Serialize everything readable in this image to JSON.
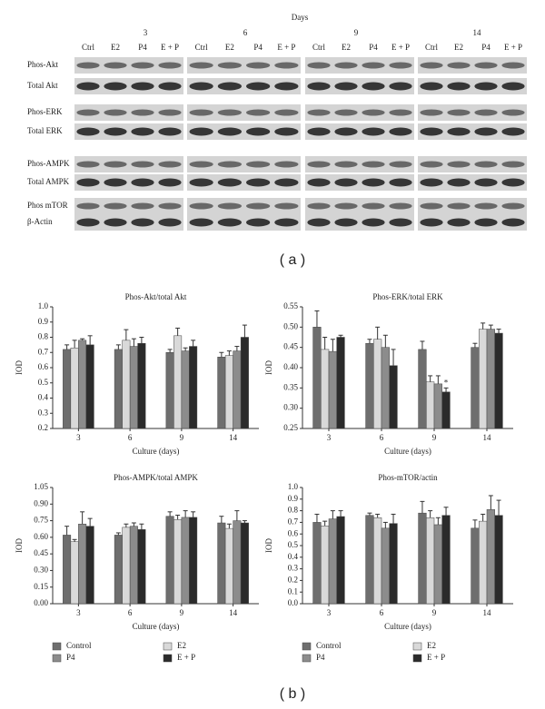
{
  "blot": {
    "header": "Days",
    "days": [
      "3",
      "6",
      "9",
      "14"
    ],
    "lanes": [
      "Ctrl",
      "E2",
      "P4",
      "E + P"
    ],
    "rows": [
      "Phos-Akt",
      "Total Akt",
      "Phos-ERK",
      "Total ERK",
      "Phos-AMPK",
      "Total AMPK",
      "Phos mTOR",
      "β-Actin"
    ]
  },
  "labels": {
    "a": "( a )",
    "b": "( b )"
  },
  "chart_data": [
    {
      "type": "bar",
      "title": "Phos-Akt/total Akt",
      "x_label": "Culture (days)",
      "y_label": "IOD",
      "categories": [
        "3",
        "6",
        "9",
        "14"
      ],
      "ylim": [
        0.2,
        1.0
      ],
      "yticks": [
        0.2,
        0.3,
        0.4,
        0.5,
        0.6,
        0.7,
        0.8,
        0.9,
        {
          "value": 1.0,
          "label": "1.0"
        }
      ],
      "series": [
        {
          "color": "#6e6e6e",
          "values": [
            0.72,
            0.72,
            0.7,
            0.67
          ],
          "errors": [
            0.03,
            0.03,
            0.02,
            0.03
          ]
        },
        {
          "color": "#d9d9d9",
          "values": [
            0.73,
            0.78,
            0.81,
            0.68
          ],
          "errors": [
            0.05,
            0.07,
            0.05,
            0.03
          ]
        },
        {
          "color": "#8c8c8c",
          "values": [
            0.78,
            0.74,
            0.71,
            0.71
          ],
          "errors": [
            0.01,
            0.05,
            0.02,
            0.03
          ]
        },
        {
          "color": "#2b2b2b",
          "values": [
            0.75,
            0.76,
            0.74,
            0.8
          ],
          "errors": [
            0.06,
            0.04,
            0.04,
            0.08
          ]
        }
      ]
    },
    {
      "type": "bar",
      "title": "Phos-ERK/total ERK",
      "x_label": "Culture (days)",
      "y_label": "IOD",
      "categories": [
        "3",
        "6",
        "9",
        "14"
      ],
      "ylim": [
        0.25,
        0.55
      ],
      "yticks": [
        0.25,
        {
          "value": 0.3,
          "label": "0.30"
        },
        0.35,
        {
          "value": 0.4,
          "label": "0.40"
        },
        0.45,
        {
          "value": 0.5,
          "label": "0.50"
        },
        0.55
      ],
      "annotation": "*",
      "series": [
        {
          "color": "#6e6e6e",
          "values": [
            0.5,
            0.46,
            0.445,
            0.45
          ],
          "errors": [
            0.04,
            0.01,
            0.02,
            0.01
          ]
        },
        {
          "color": "#d9d9d9",
          "values": [
            0.445,
            0.47,
            0.365,
            0.495
          ],
          "errors": [
            0.03,
            0.03,
            0.015,
            0.015
          ]
        },
        {
          "color": "#8c8c8c",
          "values": [
            0.44,
            0.45,
            0.36,
            0.495
          ],
          "errors": [
            0.03,
            0.03,
            0.02,
            0.01
          ]
        },
        {
          "color": "#2b2b2b",
          "values": [
            0.475,
            0.405,
            0.34,
            0.485
          ],
          "errors": [
            0.005,
            0.04,
            0.01,
            0.01
          ]
        }
      ]
    },
    {
      "type": "bar",
      "title": "Phos-AMPK/total AMPK",
      "x_label": "Culture (days)",
      "y_label": "IOD",
      "categories": [
        "3",
        "6",
        "9",
        "14"
      ],
      "ylim": [
        0,
        1.05
      ],
      "yticks": [
        {
          "value": 0,
          "label": "0.00"
        },
        0.15,
        {
          "value": 0.3,
          "label": "0.30"
        },
        0.45,
        {
          "value": 0.6,
          "label": "0.60"
        },
        0.75,
        {
          "value": 0.9,
          "label": "0.90"
        },
        1.05
      ],
      "legend": true,
      "series": [
        {
          "name": "Control",
          "color": "#6e6e6e",
          "values": [
            0.62,
            0.62,
            0.79,
            0.73
          ],
          "errors": [
            0.08,
            0.02,
            0.04,
            0.06
          ]
        },
        {
          "name": "E2",
          "color": "#d9d9d9",
          "values": [
            0.56,
            0.69,
            0.76,
            0.68
          ],
          "errors": [
            0.02,
            0.03,
            0.04,
            0.04
          ]
        },
        {
          "name": "P4",
          "color": "#8c8c8c",
          "values": [
            0.72,
            0.7,
            0.78,
            0.75
          ],
          "errors": [
            0.11,
            0.03,
            0.06,
            0.09
          ]
        },
        {
          "name": "E + P",
          "color": "#2b2b2b",
          "values": [
            0.7,
            0.67,
            0.78,
            0.73
          ],
          "errors": [
            0.07,
            0.05,
            0.05,
            0.02
          ]
        }
      ]
    },
    {
      "type": "bar",
      "title": "Phos-mTOR/actin",
      "x_label": "Culture (days)",
      "y_label": "IOD",
      "categories": [
        "3",
        "6",
        "9",
        "14"
      ],
      "ylim": [
        0,
        1.0
      ],
      "yticks": [
        {
          "value": 0,
          "label": "0.0"
        },
        0.1,
        0.2,
        0.3,
        0.4,
        0.5,
        0.6,
        0.7,
        0.8,
        0.9,
        {
          "value": 1.0,
          "label": "1.0"
        }
      ],
      "legend": true,
      "series": [
        {
          "name": "Control",
          "color": "#6e6e6e",
          "values": [
            0.7,
            0.76,
            0.78,
            0.65
          ],
          "errors": [
            0.07,
            0.02,
            0.1,
            0.07
          ]
        },
        {
          "name": "E2",
          "color": "#d9d9d9",
          "values": [
            0.67,
            0.74,
            0.74,
            0.71
          ],
          "errors": [
            0.04,
            0.03,
            0.06,
            0.06
          ]
        },
        {
          "name": "P4",
          "color": "#8c8c8c",
          "values": [
            0.73,
            0.65,
            0.68,
            0.81
          ],
          "errors": [
            0.07,
            0.05,
            0.06,
            0.12
          ]
        },
        {
          "name": "E + P",
          "color": "#2b2b2b",
          "values": [
            0.75,
            0.69,
            0.76,
            0.76
          ],
          "errors": [
            0.05,
            0.08,
            0.07,
            0.13
          ]
        }
      ]
    }
  ]
}
